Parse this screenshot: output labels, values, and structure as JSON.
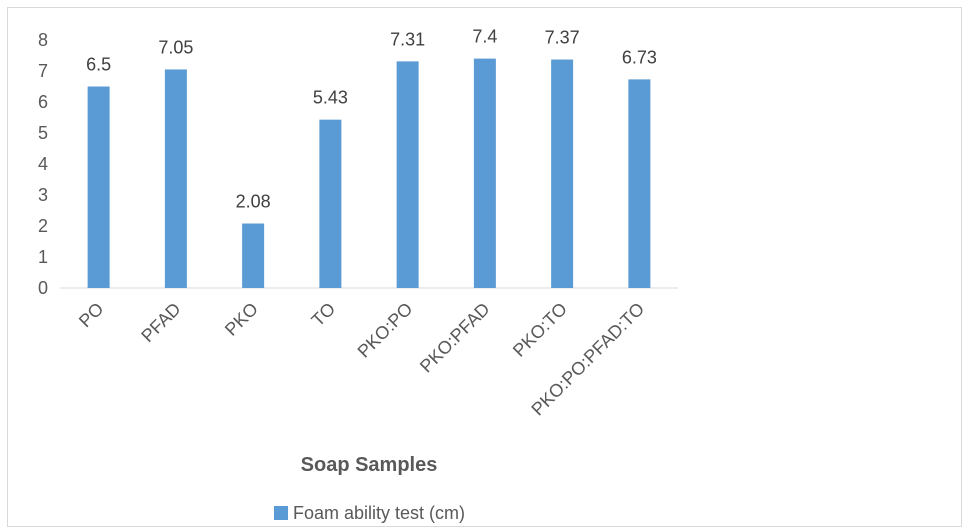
{
  "chart_data": {
    "type": "bar",
    "categories": [
      "PO",
      "PFAD",
      "PKO",
      "TO",
      "PKO:PO",
      "PKO:PFAD",
      "PKO:TO",
      "PKO:PO:PFAD:TO"
    ],
    "series": [
      {
        "name": "Foam ability test (cm)",
        "values": [
          6.5,
          7.05,
          2.08,
          5.43,
          7.31,
          7.4,
          7.37,
          6.73
        ],
        "color": "#5b9bd5"
      }
    ],
    "data_labels": [
      "6.5",
      "7.05",
      "2.08",
      "5.43",
      "7.31",
      "7.4",
      "7.37",
      "6.73"
    ],
    "title": "",
    "xlabel": "Soap Samples",
    "ylabel": "",
    "ylim": [
      0,
      8
    ],
    "yticks": [
      0,
      1,
      2,
      3,
      4,
      5,
      6,
      7,
      8
    ],
    "grid": false,
    "legend_position": "bottom"
  }
}
